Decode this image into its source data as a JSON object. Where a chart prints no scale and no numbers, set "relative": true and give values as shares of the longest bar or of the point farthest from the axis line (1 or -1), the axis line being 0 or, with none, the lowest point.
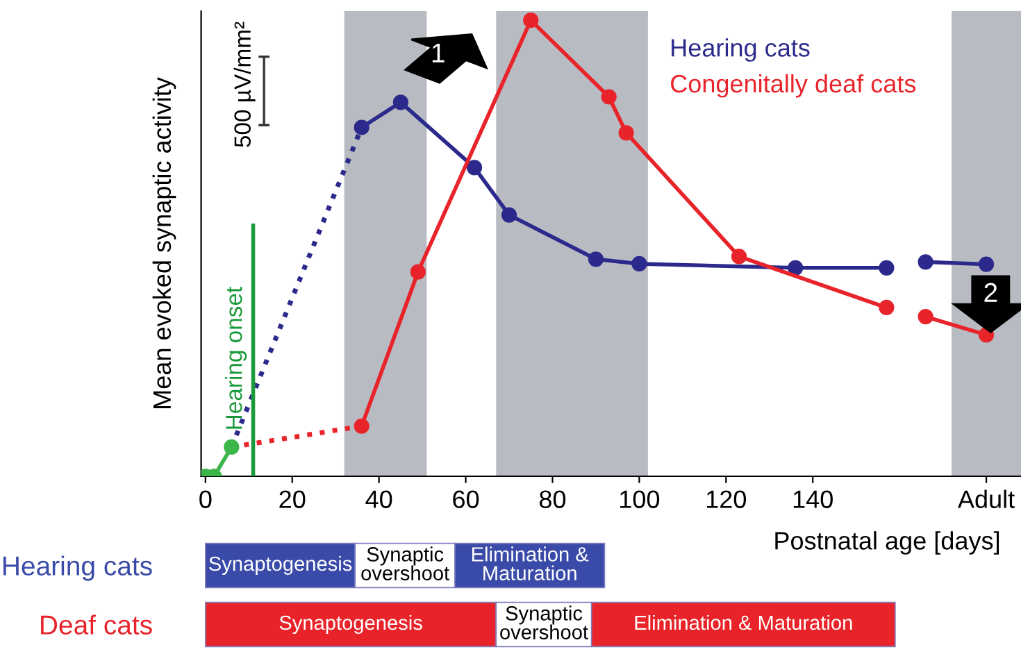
{
  "chart_data": [
    {
      "type": "line",
      "relative": true,
      "ylabel": "Mean evoked synaptic activity",
      "xlabel": "Postnatal age [days]",
      "xlim": [
        -1,
        188
      ],
      "xticks": [
        0,
        20,
        40,
        60,
        80,
        100,
        120,
        140,
        {
          "value": 180,
          "label": "Adult"
        }
      ],
      "grid": false,
      "legend": "top right",
      "marker": "circle",
      "series": [
        {
          "name": "Hearing cats",
          "color": "#2b2a8c",
          "x": [
            36,
            45,
            62,
            70,
            90,
            100,
            136,
            157,
            162,
            166,
            180
          ],
          "values": [
            0.765,
            0.82,
            0.677,
            0.573,
            0.476,
            0.466,
            0.457,
            0.457,
            null,
            0.47,
            0.465
          ]
        },
        {
          "name": "Congenitally deaf cats",
          "color": "#e8242a",
          "x": [
            36,
            49,
            75,
            93,
            97,
            123,
            157,
            162,
            166,
            180
          ],
          "values": [
            0.11,
            0.448,
            1,
            0.832,
            0.753,
            0.482,
            0.37,
            null,
            0.35,
            0.31
          ]
        },
        {
          "color": "#2b2a8c",
          "line_style": "dotted",
          "marker": "none",
          "x": [
            6,
            36
          ],
          "values": [
            0.064,
            0.765
          ]
        },
        {
          "color": "#e8242a",
          "line_style": "dotted",
          "marker": "none",
          "x": [
            6,
            36
          ],
          "values": [
            0.064,
            0.11
          ]
        },
        {
          "color": "#3cb64a",
          "x": [
            0,
            2,
            6
          ],
          "values": [
            0,
            0,
            0.064
          ]
        },
        {
          "name": "Hearing onset",
          "color": "#1a9a3a",
          "marker": "none",
          "x": [
            11,
            11
          ],
          "values": [
            0,
            0.55
          ]
        }
      ],
      "bands": [
        {
          "axis": "x",
          "from": 32,
          "to": 51,
          "color": "#b9bbc2"
        },
        {
          "axis": "x",
          "from": 67,
          "to": 102,
          "color": "#b9bbc2"
        },
        {
          "axis": "x",
          "from": 172,
          "to": 188,
          "color": "#b9bbc2"
        }
      ],
      "annotations": [
        "500 µV/mm²",
        "1",
        "2"
      ]
    },
    {
      "type": "bar",
      "orientation": "horizontal",
      "stacked": true,
      "tick_labels": "y",
      "xticks": [
        0,
        20,
        40,
        60,
        80,
        100,
        120,
        140
      ],
      "categories": [
        "Hearing cats",
        "Deaf cats"
      ],
      "series": [
        {
          "colors": [
            "#3a4aa8",
            "#e8242a"
          ],
          "values": [
            34.5,
            67
          ],
          "value_labels": [
            "Synaptogenesis",
            "Synaptogenesis"
          ]
        },
        {
          "colors": [
            "#ffffff",
            "#ffffff"
          ],
          "values": [
            23,
            22
          ],
          "value_labels": [
            "Synaptic\novershoot",
            "Synaptic\novershoot"
          ]
        },
        {
          "colors": [
            "#3a4aa8",
            "#e8242a"
          ],
          "values": [
            34.5,
            70
          ],
          "value_labels": [
            "Elimination &\nMaturation",
            "Elimination & Maturation"
          ]
        }
      ]
    }
  ]
}
